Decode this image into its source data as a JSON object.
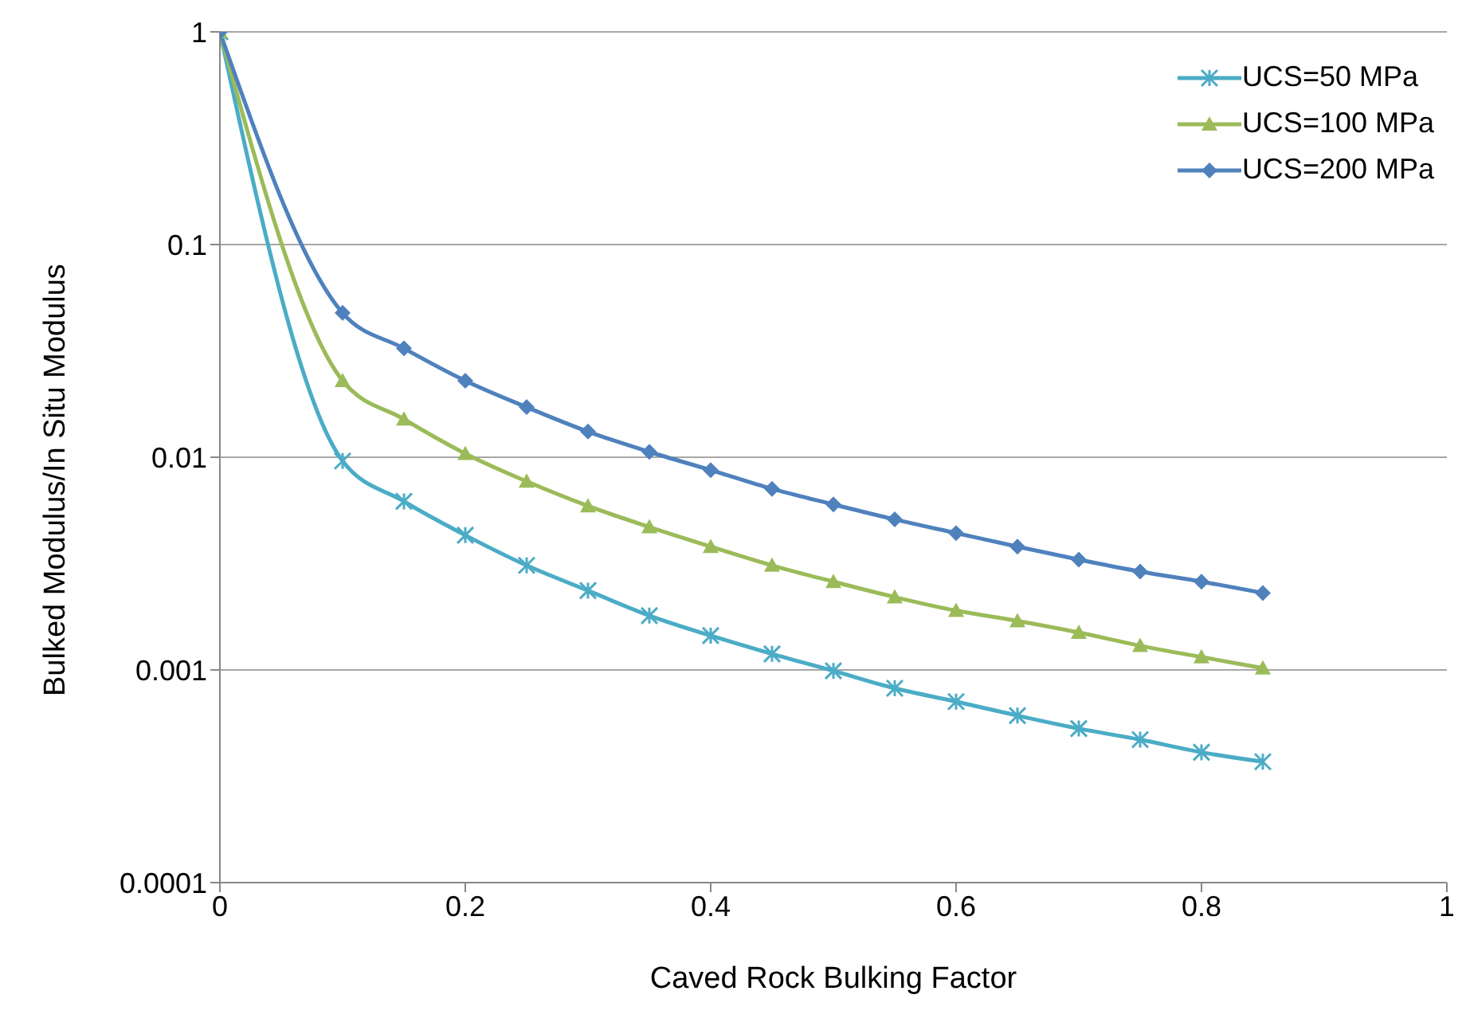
{
  "chart_data": {
    "type": "line",
    "xlabel": "Caved Rock Bulking Factor",
    "ylabel": "Bulked Modulus/In Situ Modulus",
    "x": [
      0,
      0.1,
      0.15,
      0.2,
      0.25,
      0.3,
      0.35,
      0.4,
      0.45,
      0.5,
      0.55,
      0.6,
      0.65,
      0.7,
      0.75,
      0.8,
      0.85
    ],
    "series": [
      {
        "name": "UCS=50 MPa",
        "color": "#4bacc6",
        "marker": "cross",
        "values": [
          1,
          0.0096,
          0.0062,
          0.0043,
          0.0031,
          0.00236,
          0.0018,
          0.00145,
          0.00119,
          0.00099,
          0.00082,
          0.00071,
          0.00061,
          0.00053,
          0.00047,
          0.00041,
          0.00037
        ]
      },
      {
        "name": "UCS=100 MPa",
        "color": "#9bbb59",
        "marker": "triangle",
        "values": [
          1,
          0.0229,
          0.0151,
          0.0104,
          0.0077,
          0.0059,
          0.0047,
          0.0038,
          0.0031,
          0.0026,
          0.0022,
          0.0019,
          0.0017,
          0.0015,
          0.0013,
          0.00115,
          0.00102
        ]
      },
      {
        "name": "UCS=200 MPa",
        "color": "#4f81bd",
        "marker": "diamond",
        "values": [
          1,
          0.0477,
          0.0325,
          0.0229,
          0.0172,
          0.0132,
          0.0106,
          0.0087,
          0.0071,
          0.006,
          0.0051,
          0.0044,
          0.0038,
          0.0033,
          0.0029,
          0.0026,
          0.0023
        ]
      }
    ],
    "xlim": [
      0,
      1
    ],
    "xticks": [
      0,
      0.2,
      0.4,
      0.6,
      0.8,
      1
    ],
    "ylim": [
      0.0001,
      1
    ],
    "yticks": [
      0.0001,
      0.001,
      0.01,
      0.1,
      1
    ],
    "log": "y",
    "grid": "y",
    "legend": "top right",
    "line_style": "solid"
  }
}
